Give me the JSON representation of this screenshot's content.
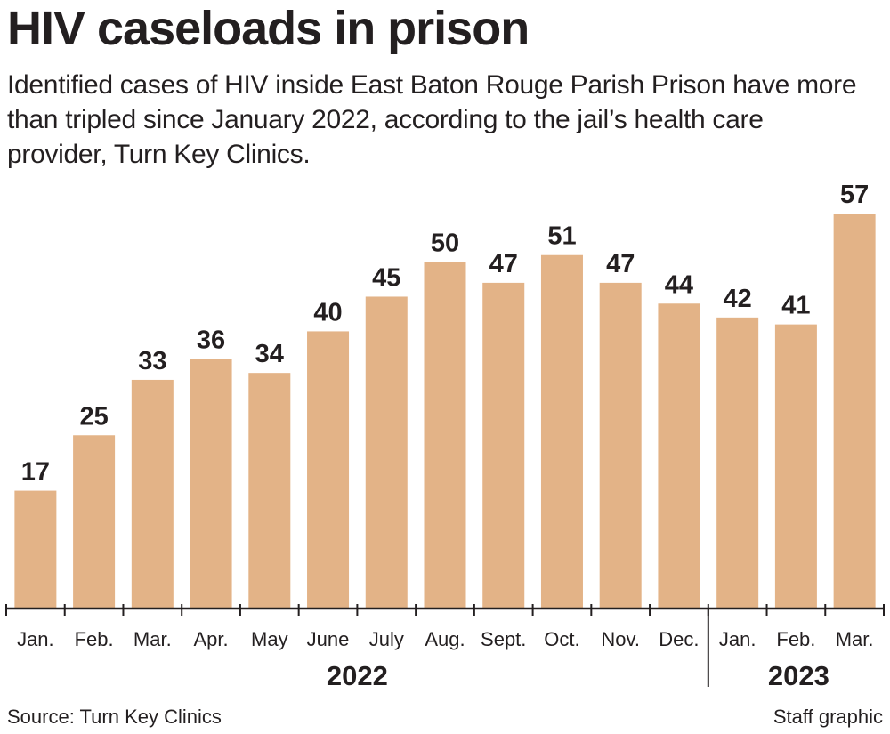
{
  "chart_data": {
    "type": "bar",
    "title": "HIV caseloads in prison",
    "subtitle": "Identified cases of HIV inside East Baton Rouge Parish Prison have more than tripled since January 2022, according to the jail’s health care provider, Turn Key Clinics.",
    "categories": [
      "Jan.",
      "Feb.",
      "Mar.",
      "Apr.",
      "May",
      "June",
      "July",
      "Aug.",
      "Sept.",
      "Oct.",
      "Nov.",
      "Dec.",
      "Jan.",
      "Feb.",
      "Mar."
    ],
    "year_groups": [
      {
        "label": "2022",
        "count": 12
      },
      {
        "label": "2023",
        "count": 3
      }
    ],
    "values": [
      17,
      25,
      33,
      36,
      34,
      40,
      45,
      50,
      47,
      51,
      47,
      44,
      42,
      41,
      57
    ],
    "xlabel": "",
    "ylabel": "",
    "ylim": [
      0,
      57
    ],
    "grid": false,
    "data_labels": true,
    "bar_color": "#e3b387",
    "text_color": "#231f20"
  },
  "footer": {
    "source": "Source: Turn Key Clinics",
    "credit": "Staff graphic"
  }
}
